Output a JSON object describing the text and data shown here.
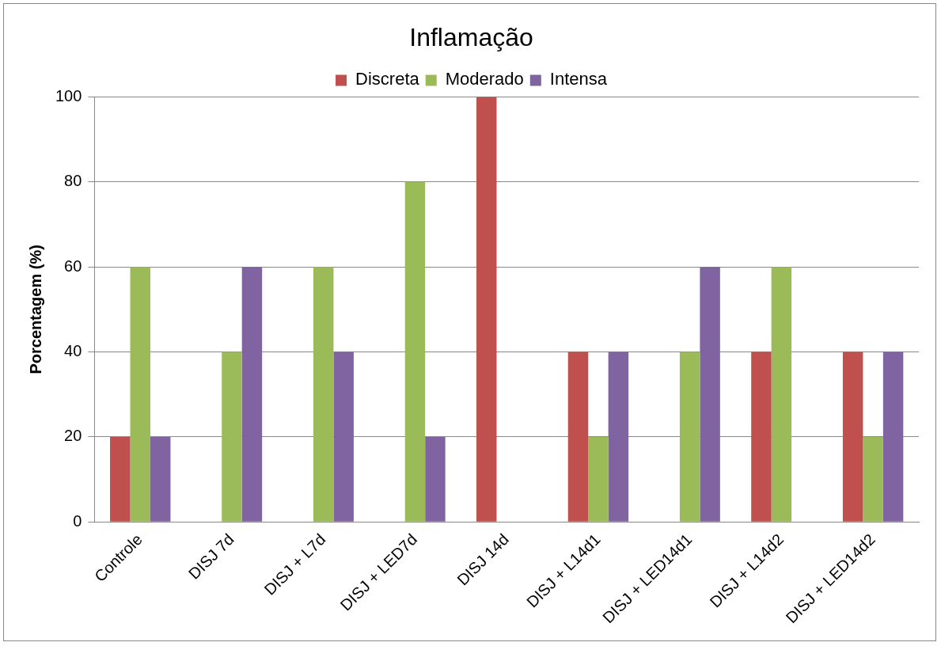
{
  "chart_data": {
    "type": "bar",
    "title": "Inflamação",
    "ylabel": "Porcentagem (%)",
    "categories": [
      "Controle",
      "DISJ 7d",
      "DISJ + L7d",
      "DISJ + LED7d",
      "DISJ 14d",
      "DISJ + L14d1",
      "DISJ + LED14d1",
      "DISJ + L14d2",
      "DISJ + LED14d2"
    ],
    "series": [
      {
        "name": "Discreta",
        "color": "#c0504d",
        "values": [
          20,
          0,
          0,
          0,
          100,
          40,
          0,
          40,
          40
        ]
      },
      {
        "name": "Moderado",
        "color": "#9bbb59",
        "values": [
          60,
          40,
          60,
          80,
          0,
          20,
          40,
          60,
          20
        ]
      },
      {
        "name": "Intensa",
        "color": "#8064a2",
        "values": [
          20,
          60,
          40,
          20,
          0,
          40,
          60,
          0,
          40
        ]
      }
    ],
    "ylim": [
      0,
      100
    ],
    "yticks": [
      0,
      20,
      40,
      60,
      80,
      100
    ],
    "grid": "y",
    "legend": "top"
  }
}
